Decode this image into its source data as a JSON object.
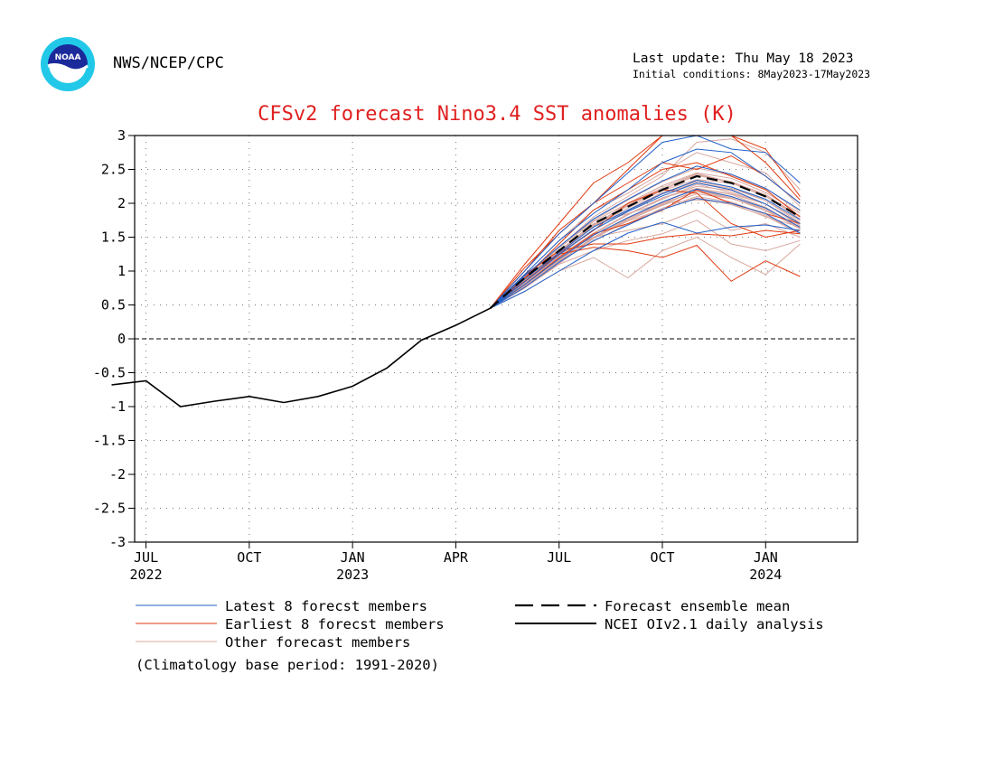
{
  "header": {
    "org": "NWS/NCEP/CPC",
    "last_update": "Last update: Thu May 18 2023",
    "initial_conditions": "Initial conditions: 8May2023-17May2023",
    "logo_text": "NOAA"
  },
  "colors": {
    "title": "#e02020",
    "latest": "#2060c8",
    "earliest": "#e03a10",
    "other": "#d8a8a0",
    "mean": "#000000",
    "observed": "#000000"
  },
  "chart_data": {
    "type": "line",
    "title": "CFSv2 forecast Nino3.4 SST anomalies (K)",
    "xlabel": "",
    "ylabel": "",
    "x_unit": "months since Jul 2022 (tick at month start)",
    "xlim": [
      -0.33,
      20.67
    ],
    "ylim": [
      -3,
      3
    ],
    "y_ticks": [
      "3",
      "2.5",
      "2",
      "1.5",
      "1",
      "0.5",
      "0",
      "-0.5",
      "-1",
      "-1.5",
      "-2",
      "-2.5",
      "-3"
    ],
    "x_ticks": [
      {
        "x": 0,
        "label": "JUL",
        "sub": "2022"
      },
      {
        "x": 3,
        "label": "OCT",
        "sub": ""
      },
      {
        "x": 6,
        "label": "JAN",
        "sub": "2023"
      },
      {
        "x": 9,
        "label": "APR",
        "sub": ""
      },
      {
        "x": 12,
        "label": "JUL",
        "sub": ""
      },
      {
        "x": 15,
        "label": "OCT",
        "sub": ""
      },
      {
        "x": 18,
        "label": "JAN",
        "sub": "2024"
      }
    ],
    "grid": true,
    "observed": {
      "name": "NCEI OIv2.1 daily analysis",
      "x": [
        -1.0,
        -0.0,
        1.0,
        2.0,
        3.0,
        4.0,
        5.0,
        6.0,
        7.0,
        8.0,
        9.0,
        10.0
      ],
      "y": [
        -0.68,
        -0.62,
        -1.0,
        -0.92,
        -0.85,
        -0.94,
        -0.85,
        -0.7,
        -0.43,
        -0.02,
        0.2,
        0.45
      ]
    },
    "mean": {
      "name": "Forecast ensemble mean",
      "x": [
        10.0,
        11.0,
        12.0,
        13.0,
        14.0,
        15.0,
        16.0,
        17.0,
        18.0,
        19.0
      ],
      "y": [
        0.45,
        0.9,
        1.3,
        1.7,
        1.95,
        2.2,
        2.4,
        2.3,
        2.1,
        1.8
      ]
    },
    "latest_members": {
      "name": "Latest 8 forecst members",
      "x": [
        10.0,
        11.0,
        12.0,
        13.0,
        14.0,
        15.0,
        16.0,
        17.0,
        18.0,
        19.0
      ],
      "series": [
        [
          0.45,
          0.8,
          1.18,
          1.53,
          1.79,
          2.02,
          2.21,
          2.1,
          1.93,
          1.65
        ],
        [
          0.45,
          0.76,
          1.13,
          1.45,
          1.68,
          1.91,
          2.07,
          2.0,
          1.85,
          1.56
        ],
        [
          0.45,
          0.88,
          1.27,
          1.65,
          1.9,
          2.14,
          2.34,
          2.24,
          2.06,
          1.76
        ],
        [
          0.45,
          0.84,
          1.24,
          1.61,
          1.88,
          2.11,
          2.3,
          2.2,
          1.99,
          1.7
        ],
        [
          0.45,
          0.93,
          1.36,
          1.77,
          2.06,
          2.33,
          2.55,
          2.43,
          2.22,
          1.9
        ],
        [
          0.45,
          0.7,
          1.0,
          1.3,
          1.56,
          1.72,
          1.56,
          1.65,
          1.68,
          1.6
        ],
        [
          0.45,
          1.0,
          1.55,
          2.0,
          2.45,
          2.9,
          3.0,
          2.8,
          2.75,
          2.3
        ],
        [
          0.45,
          0.95,
          1.45,
          1.85,
          2.2,
          2.6,
          2.8,
          2.75,
          2.4,
          2.0
        ]
      ]
    },
    "earliest_members": {
      "name": "Earliest 8 forecst members",
      "x": [
        10.0,
        11.0,
        12.0,
        13.0,
        14.0,
        15.0,
        16.0,
        17.0,
        18.0,
        19.0
      ],
      "series": [
        [
          0.45,
          1.1,
          1.7,
          2.3,
          2.6,
          3.0,
          3.0,
          3.0,
          2.6,
          2.05
        ],
        [
          0.45,
          0.9,
          1.25,
          1.35,
          1.3,
          1.2,
          1.38,
          0.85,
          1.15,
          0.92
        ],
        [
          0.45,
          0.95,
          1.3,
          1.4,
          1.4,
          1.5,
          1.55,
          1.52,
          1.6,
          1.55
        ],
        [
          0.45,
          1.0,
          1.6,
          2.0,
          2.3,
          2.6,
          2.5,
          2.7,
          2.4,
          2.0
        ],
        [
          0.45,
          1.05,
          1.55,
          2.0,
          2.5,
          3.0,
          3.1,
          3.0,
          2.8,
          2.1
        ],
        [
          0.45,
          0.85,
          1.25,
          1.6,
          2.0,
          2.2,
          2.15,
          1.7,
          1.5,
          1.6
        ],
        [
          0.45,
          0.9,
          1.4,
          1.9,
          2.2,
          2.5,
          2.6,
          2.4,
          2.2,
          1.8
        ],
        [
          0.45,
          0.8,
          1.2,
          1.55,
          1.7,
          1.9,
          2.2,
          2.0,
          1.85,
          1.7
        ]
      ]
    },
    "other_members": {
      "name": "Other forecast members",
      "x": [
        10.0,
        11.0,
        12.0,
        13.0,
        14.0,
        15.0,
        16.0,
        17.0,
        18.0,
        19.0
      ],
      "series": [
        [
          0.45,
          0.79,
          1.16,
          1.49,
          1.75,
          1.97,
          2.14,
          2.07,
          1.91,
          1.62
        ],
        [
          0.45,
          0.91,
          1.3,
          1.66,
          1.93,
          2.19,
          2.35,
          2.3,
          2.11,
          1.77
        ],
        [
          0.45,
          0.82,
          1.22,
          1.56,
          1.84,
          2.06,
          2.28,
          2.16,
          1.99,
          1.67
        ],
        [
          0.45,
          0.77,
          1.11,
          1.48,
          1.74,
          1.91,
          2.08,
          1.98,
          1.81,
          1.55
        ],
        [
          0.45,
          0.86,
          1.25,
          1.6,
          1.9,
          2.16,
          2.32,
          2.24,
          2.04,
          1.74
        ],
        [
          0.45,
          0.9,
          1.34,
          1.73,
          2.0,
          2.26,
          2.45,
          2.37,
          2.16,
          1.85
        ],
        [
          0.45,
          0.8,
          1.18,
          1.53,
          1.78,
          2.02,
          2.22,
          2.13,
          1.94,
          1.64
        ],
        [
          0.45,
          0.84,
          1.21,
          1.55,
          1.83,
          2.08,
          2.22,
          2.14,
          1.99,
          1.69
        ],
        [
          0.45,
          0.78,
          1.14,
          1.49,
          1.75,
          1.98,
          2.19,
          2.08,
          1.89,
          1.64
        ],
        [
          0.45,
          0.88,
          1.29,
          1.69,
          1.96,
          2.2,
          2.41,
          2.32,
          2.13,
          1.8
        ],
        [
          0.45,
          0.92,
          1.36,
          1.75,
          2.05,
          2.32,
          2.52,
          2.42,
          2.22,
          1.88
        ],
        [
          0.45,
          0.81,
          1.15,
          1.5,
          1.77,
          1.99,
          2.19,
          2.1,
          1.91,
          1.63
        ],
        [
          0.45,
          0.89,
          1.28,
          1.67,
          1.97,
          2.2,
          2.43,
          2.3,
          2.1,
          1.8
        ],
        [
          0.45,
          0.82,
          1.21,
          1.56,
          1.84,
          2.08,
          2.25,
          2.19,
          1.99,
          1.7
        ],
        [
          0.45,
          0.76,
          1.14,
          1.44,
          1.7,
          1.93,
          2.1,
          2.02,
          1.83,
          1.56
        ],
        [
          0.45,
          0.9,
          1.3,
          1.68,
          1.99,
          2.23,
          2.44,
          2.31,
          2.11,
          1.81
        ],
        [
          0.45,
          0.85,
          1.26,
          1.61,
          1.88,
          2.14,
          2.3,
          2.22,
          2.04,
          1.71
        ],
        [
          0.45,
          0.78,
          1.17,
          1.49,
          1.77,
          2.01,
          2.17,
          2.07,
          1.91,
          1.62
        ],
        [
          0.45,
          0.7,
          1.0,
          1.2,
          0.9,
          1.3,
          1.5,
          1.2,
          0.95,
          1.4
        ],
        [
          0.45,
          0.75,
          1.1,
          1.3,
          1.45,
          1.55,
          1.75,
          1.4,
          1.3,
          1.45
        ],
        [
          0.45,
          0.85,
          1.35,
          1.8,
          2.1,
          2.4,
          2.9,
          2.95,
          2.75,
          2.2
        ],
        [
          0.45,
          0.8,
          1.25,
          1.5,
          1.6,
          1.7,
          1.9,
          1.6,
          1.7,
          1.5
        ],
        [
          0.45,
          0.95,
          1.45,
          1.9,
          2.15,
          2.45,
          2.75,
          2.6,
          2.45,
          1.95
        ],
        [
          0.45,
          0.9,
          1.3,
          1.7,
          1.85,
          2.0,
          2.05,
          2.0,
          1.8,
          1.65
        ]
      ]
    },
    "legend": [
      {
        "label": "Latest 8 forecst members",
        "style": "latest"
      },
      {
        "label": "Earliest 8 forecst members",
        "style": "earliest"
      },
      {
        "label": "Other forecast members",
        "style": "other"
      },
      {
        "label": "Forecast ensemble mean",
        "style": "mean"
      },
      {
        "label": "NCEI OIv2.1 daily analysis",
        "style": "observed"
      }
    ],
    "note": "(Climatology base period: 1991-2020)"
  }
}
